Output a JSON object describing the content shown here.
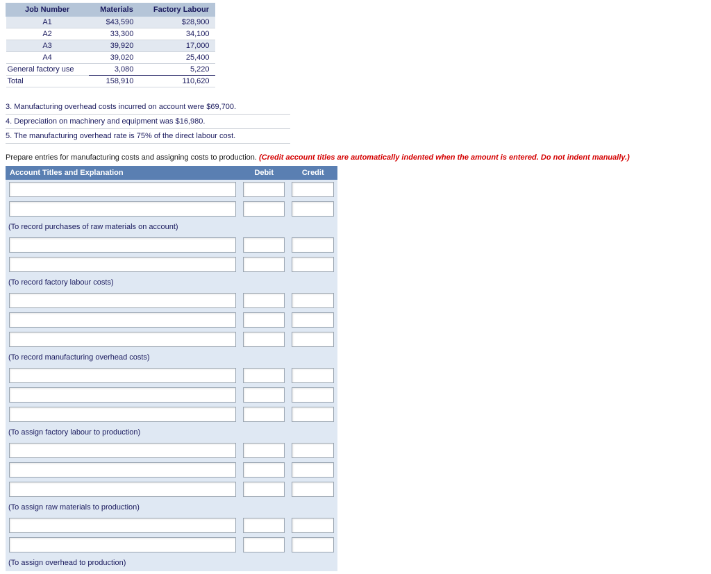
{
  "jobTable": {
    "headers": [
      "Job Number",
      "Materials",
      "Factory Labour"
    ],
    "rows": [
      {
        "label": "A1",
        "materials": "$43,590",
        "labour": "$28,900",
        "band": true,
        "center": true
      },
      {
        "label": "A2",
        "materials": "33,300",
        "labour": "34,100",
        "band": false,
        "center": true
      },
      {
        "label": "A3",
        "materials": "39,920",
        "labour": "17,000",
        "band": true,
        "center": true
      },
      {
        "label": "A4",
        "materials": "39,020",
        "labour": "25,400",
        "band": false,
        "center": true
      },
      {
        "label": "General factory use",
        "materials": "3,080",
        "labour": "5,220",
        "band": false,
        "center": false,
        "underline": true
      },
      {
        "label": "Total",
        "materials": "158,910",
        "labour": "110,620",
        "band": false,
        "center": false
      }
    ]
  },
  "notes": [
    "3. Manufacturing overhead costs incurred on account were $69,700.",
    "4. Depreciation on machinery and equipment was $16,980.",
    "5. The manufacturing overhead rate is 75% of the direct labour cost."
  ],
  "prepare": {
    "black": "Prepare entries for manufacturing costs and assigning costs to production. ",
    "red": "(Credit account titles are automatically indented when the amount is entered. Do not indent manually.)"
  },
  "entryTable": {
    "headers": {
      "acct": "Account Titles and Explanation",
      "debit": "Debit",
      "credit": "Credit"
    },
    "groups": [
      {
        "rows": 2,
        "caption": "(To record purchases of raw materials on account)"
      },
      {
        "rows": 2,
        "caption": "(To record factory labour costs)"
      },
      {
        "rows": 3,
        "caption": "(To record manufacturing overhead costs)"
      },
      {
        "rows": 3,
        "caption": "(To assign factory labour to production)"
      },
      {
        "rows": 3,
        "caption": "(To assign raw materials to production)"
      },
      {
        "rows": 2,
        "caption": "(To assign overhead to production)"
      }
    ]
  }
}
